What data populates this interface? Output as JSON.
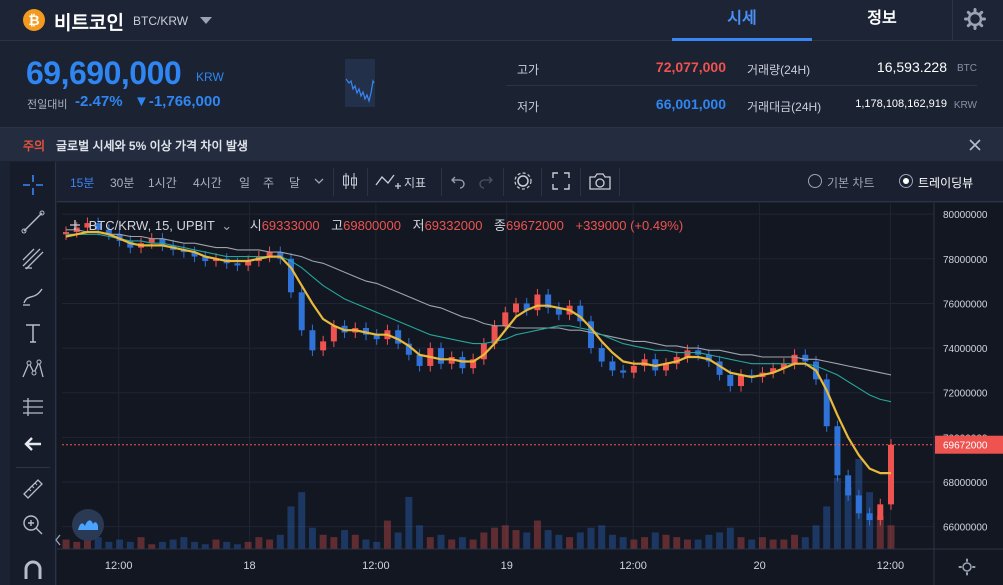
{
  "header": {
    "coin_logo": "₿",
    "coin_name": "비트코인",
    "pair": "BTC/KRW",
    "tabs": [
      "시세",
      "정보"
    ]
  },
  "ticker": {
    "price": "69,690,000",
    "currency": "KRW",
    "change_label": "전일대비",
    "change_pct": "-2.47%",
    "change_amt": "▼-1,766,000",
    "high_label": "고가",
    "high": "72,077,000",
    "low_label": "저가",
    "low": "66,001,000",
    "vol_label": "거래량(24H)",
    "volume": "16,593.228",
    "vol_unit": "BTC",
    "val_label": "거래대금(24H)",
    "value": "1,178,108,162,919",
    "val_unit": "KRW"
  },
  "notice": {
    "tag": "주의",
    "text": "글로벌 시세와 5% 이상 가격 차이 발생"
  },
  "toolbar": {
    "timeframes": [
      "15분",
      "30분",
      "1시간",
      "4시간",
      "일",
      "주",
      "달"
    ],
    "indicators_label": "지표",
    "basic_chart": "기본 차트",
    "tradingview": "트레이딩뷰"
  },
  "legend": {
    "symbol": "BTC/KRW, 15, UPBIT",
    "open_label": "시",
    "open": "69333000",
    "high_label": "고",
    "high": "69800000",
    "low_label": "저",
    "low": "69332000",
    "close_label": "종",
    "close": "69672000",
    "change": "+339000 (+0.49%)"
  },
  "colors": {
    "up": "#ef5350",
    "down": "#2f73d9",
    "ma_fast": "#e8b93a",
    "ma_mid": "#26a69a",
    "ma_slow": "#9ea3ab",
    "accent": "#3a86f5"
  },
  "chart_data": {
    "type": "line",
    "title": "",
    "y_ticks": [
      "80000000",
      "78000000",
      "76000000",
      "74000000",
      "72000000",
      "70000000",
      "68000000",
      "66000000"
    ],
    "x_ticks": [
      "12:00",
      "18",
      "12:00",
      "19",
      "12:00",
      "20",
      "12:00"
    ],
    "ylim": [
      65000000,
      80500000
    ],
    "current_price_label": "69672000",
    "price": [
      79200000,
      79400000,
      79600000,
      79300000,
      79100000,
      78800000,
      78500000,
      78700000,
      78900000,
      78600000,
      78400000,
      78300000,
      78100000,
      77900000,
      78000000,
      77800000,
      77700000,
      77900000,
      78100000,
      78300000,
      78000000,
      76500000,
      74800000,
      73900000,
      74300000,
      75000000,
      74700000,
      74900000,
      74600000,
      74400000,
      74800000,
      74200000,
      73700000,
      73200000,
      74000000,
      73300000,
      73600000,
      73100000,
      73500000,
      74200000,
      75000000,
      75600000,
      76000000,
      75700000,
      76400000,
      75800000,
      75500000,
      75900000,
      75200000,
      74000000,
      73400000,
      73000000,
      72900000,
      73200000,
      73500000,
      73000000,
      73300000,
      73600000,
      73900000,
      73700000,
      73400000,
      72800000,
      72300000,
      72800000,
      72700000,
      72900000,
      73100000,
      73300000,
      73700000,
      73400000,
      72600000,
      70500000,
      68300000,
      67400000,
      66600000,
      66300000,
      67000000,
      69672000
    ],
    "volume": [
      4,
      3,
      6,
      5,
      3,
      4,
      3,
      5,
      2,
      3,
      4,
      5,
      3,
      2,
      4,
      3,
      2,
      3,
      5,
      4,
      6,
      18,
      24,
      9,
      6,
      5,
      8,
      6,
      4,
      3,
      12,
      7,
      22,
      10,
      5,
      6,
      4,
      5,
      4,
      7,
      9,
      10,
      8,
      7,
      12,
      8,
      6,
      5,
      7,
      9,
      10,
      6,
      5,
      4,
      5,
      7,
      6,
      5,
      4,
      4,
      6,
      7,
      9,
      5,
      4,
      5,
      4,
      4,
      6,
      5,
      10,
      18,
      30,
      26,
      38,
      24,
      14,
      10
    ],
    "ma_fast": [
      79000000,
      79100000,
      79200000,
      79200000,
      79100000,
      78900000,
      78700000,
      78600000,
      78600000,
      78600000,
      78500000,
      78400000,
      78300000,
      78100000,
      78000000,
      77900000,
      77900000,
      77900000,
      78000000,
      78100000,
      78100000,
      77600000,
      76800000,
      76000000,
      75300000,
      75000000,
      74800000,
      74800000,
      74700000,
      74600000,
      74600000,
      74400000,
      74100000,
      73700000,
      73600000,
      73500000,
      73500000,
      73400000,
      73400000,
      73700000,
      74200000,
      74800000,
      75400000,
      75700000,
      75900000,
      75900000,
      75800000,
      75700000,
      75400000,
      74900000,
      74300000,
      73800000,
      73400000,
      73300000,
      73300000,
      73200000,
      73300000,
      73400000,
      73600000,
      73600000,
      73500000,
      73200000,
      72900000,
      72800000,
      72700000,
      72800000,
      72900000,
      73100000,
      73300000,
      73300000,
      73000000,
      72100000,
      71000000,
      70000000,
      69200000,
      68600000,
      68400000,
      68400000
    ],
    "ma_mid": [
      79100000,
      79100000,
      79100000,
      79100000,
      79000000,
      78900000,
      78800000,
      78800000,
      78700000,
      78700000,
      78600000,
      78500000,
      78400000,
      78300000,
      78200000,
      78100000,
      78100000,
      78100000,
      78100000,
      78100000,
      78100000,
      77900000,
      77600000,
      77200000,
      76800000,
      76500000,
      76200000,
      76000000,
      75800000,
      75600000,
      75400000,
      75200000,
      75000000,
      74800000,
      74600000,
      74500000,
      74400000,
      74300000,
      74200000,
      74200000,
      74300000,
      74400000,
      74600000,
      74700000,
      74800000,
      74900000,
      75000000,
      75000000,
      74900000,
      74800000,
      74600000,
      74400000,
      74200000,
      74100000,
      74000000,
      73900000,
      73900000,
      73800000,
      73800000,
      73800000,
      73700000,
      73600000,
      73500000,
      73400000,
      73300000,
      73300000,
      73300000,
      73300000,
      73300000,
      73300000,
      73200000,
      73000000,
      72800000,
      72500000,
      72200000,
      71900000,
      71700000,
      71600000
    ],
    "ma_slow": [
      79300000,
      79300000,
      79200000,
      79200000,
      79100000,
      79100000,
      79000000,
      79000000,
      78900000,
      78900000,
      78800000,
      78700000,
      78700000,
      78600000,
      78500000,
      78500000,
      78400000,
      78400000,
      78400000,
      78300000,
      78300000,
      78200000,
      78100000,
      77900000,
      77800000,
      77600000,
      77400000,
      77200000,
      77000000,
      76900000,
      76700000,
      76500000,
      76300000,
      76100000,
      75900000,
      75800000,
      75600000,
      75400000,
      75300000,
      75100000,
      75000000,
      75000000,
      74900000,
      74900000,
      74900000,
      74900000,
      74900000,
      74800000,
      74800000,
      74700000,
      74600000,
      74500000,
      74400000,
      74300000,
      74300000,
      74200000,
      74100000,
      74100000,
      74000000,
      74000000,
      73900000,
      73900000,
      73800000,
      73700000,
      73700000,
      73600000,
      73600000,
      73600000,
      73600000,
      73500000,
      73500000,
      73400000,
      73300000,
      73200000,
      73100000,
      73000000,
      72900000,
      72800000
    ]
  }
}
